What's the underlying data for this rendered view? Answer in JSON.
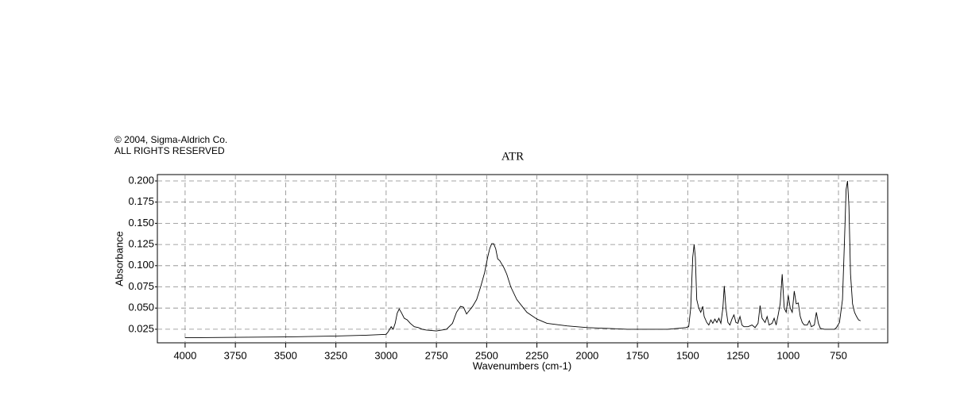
{
  "chart_data": {
    "type": "line",
    "title": "ATR",
    "notes": [
      "© 2004, Sigma-Aldrich Co.",
      "ALL RIGHTS RESERVED"
    ],
    "x_label": "Wavenumbers (cm-1)",
    "y_label": "Absorbance",
    "color": "#000000",
    "grid": true,
    "xlim": [
      4138,
      505
    ],
    "ylim": [
      0.009,
      0.2075
    ],
    "xticks": [
      4000,
      3750,
      3500,
      3250,
      3000,
      2750,
      2500,
      2250,
      2000,
      1750,
      1500,
      1250,
      1000,
      750
    ],
    "yticks": [
      0.025,
      {
        "value": 0.05,
        "label": "0.050"
      },
      0.075,
      {
        "value": 0.1,
        "label": "0.100"
      },
      0.125,
      {
        "value": 0.15,
        "label": "0.150"
      },
      0.175,
      {
        "value": 0.2,
        "label": "0.200"
      }
    ],
    "x": [
      4000,
      3750,
      3500,
      3250,
      3100,
      3000,
      2990,
      2975,
      2965,
      2955,
      2945,
      2935,
      2925,
      2910,
      2895,
      2880,
      2860,
      2840,
      2820,
      2800,
      2750,
      2700,
      2670,
      2650,
      2630,
      2615,
      2600,
      2590,
      2570,
      2550,
      2530,
      2510,
      2495,
      2485,
      2475,
      2465,
      2455,
      2445,
      2435,
      2425,
      2415,
      2400,
      2380,
      2350,
      2300,
      2250,
      2200,
      2100,
      2000,
      1900,
      1800,
      1700,
      1600,
      1550,
      1510,
      1495,
      1485,
      1475,
      1468,
      1462,
      1455,
      1445,
      1435,
      1425,
      1418,
      1405,
      1395,
      1385,
      1375,
      1365,
      1355,
      1345,
      1335,
      1325,
      1318,
      1310,
      1300,
      1290,
      1280,
      1270,
      1260,
      1250,
      1240,
      1230,
      1220,
      1200,
      1180,
      1165,
      1150,
      1140,
      1130,
      1115,
      1105,
      1095,
      1080,
      1070,
      1060,
      1050,
      1040,
      1030,
      1020,
      1010,
      1000,
      990,
      980,
      970,
      960,
      950,
      940,
      930,
      920,
      905,
      895,
      885,
      870,
      860,
      850,
      840,
      820,
      800,
      770,
      760,
      745,
      730,
      720,
      712,
      705,
      698,
      690,
      680,
      670,
      660,
      650,
      640
    ],
    "values": [
      0.015,
      0.0155,
      0.016,
      0.017,
      0.018,
      0.019,
      0.022,
      0.028,
      0.025,
      0.032,
      0.044,
      0.049,
      0.045,
      0.038,
      0.036,
      0.032,
      0.028,
      0.027,
      0.025,
      0.024,
      0.023,
      0.025,
      0.032,
      0.045,
      0.052,
      0.051,
      0.043,
      0.046,
      0.052,
      0.06,
      0.075,
      0.092,
      0.11,
      0.12,
      0.126,
      0.126,
      0.12,
      0.108,
      0.106,
      0.102,
      0.098,
      0.09,
      0.075,
      0.06,
      0.045,
      0.037,
      0.032,
      0.029,
      0.027,
      0.026,
      0.025,
      0.025,
      0.025,
      0.026,
      0.027,
      0.028,
      0.05,
      0.11,
      0.125,
      0.11,
      0.06,
      0.05,
      0.045,
      0.052,
      0.04,
      0.033,
      0.03,
      0.036,
      0.032,
      0.037,
      0.033,
      0.038,
      0.032,
      0.05,
      0.076,
      0.05,
      0.033,
      0.03,
      0.037,
      0.042,
      0.033,
      0.032,
      0.04,
      0.03,
      0.028,
      0.028,
      0.03,
      0.027,
      0.032,
      0.053,
      0.038,
      0.033,
      0.04,
      0.03,
      0.032,
      0.038,
      0.03,
      0.042,
      0.055,
      0.09,
      0.05,
      0.045,
      0.065,
      0.05,
      0.045,
      0.07,
      0.055,
      0.056,
      0.04,
      0.033,
      0.03,
      0.03,
      0.035,
      0.028,
      0.03,
      0.045,
      0.032,
      0.026,
      0.025,
      0.025,
      0.025,
      0.027,
      0.033,
      0.06,
      0.13,
      0.19,
      0.2,
      0.17,
      0.09,
      0.055,
      0.045,
      0.04,
      0.036,
      0.035
    ]
  }
}
